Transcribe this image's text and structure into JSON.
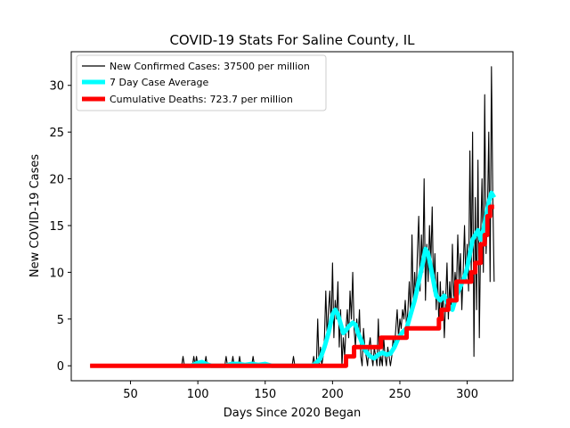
{
  "chart_data": {
    "type": "line",
    "title": "COVID-19 Stats For Saline County, IL",
    "xlabel": "Days Since 2020 Began",
    "ylabel": "New COVID-19 Cases",
    "xlim": [
      6,
      334
    ],
    "ylim": [
      -1.6,
      33.6
    ],
    "xticks": [
      50,
      100,
      150,
      200,
      250,
      300
    ],
    "yticks": [
      0,
      5,
      10,
      15,
      20,
      25,
      30
    ],
    "grid": false,
    "legend_position": "top-left",
    "series": [
      {
        "name": "New Confirmed Cases: 37500 per million",
        "color": "#000000",
        "points": [
          [
            20,
            0
          ],
          [
            88,
            0
          ],
          [
            89,
            1
          ],
          [
            90,
            0
          ],
          [
            96,
            0
          ],
          [
            97,
            1
          ],
          [
            98,
            0
          ],
          [
            99,
            1
          ],
          [
            100,
            0
          ],
          [
            105,
            0
          ],
          [
            106,
            1
          ],
          [
            107,
            0
          ],
          [
            120,
            0
          ],
          [
            121,
            1
          ],
          [
            122,
            0
          ],
          [
            125,
            0
          ],
          [
            126,
            1
          ],
          [
            127,
            0
          ],
          [
            130,
            0
          ],
          [
            131,
            1
          ],
          [
            132,
            0
          ],
          [
            140,
            0
          ],
          [
            141,
            1
          ],
          [
            142,
            0
          ],
          [
            170,
            0
          ],
          [
            171,
            1
          ],
          [
            172,
            0
          ],
          [
            185,
            0
          ],
          [
            186,
            1
          ],
          [
            187,
            0
          ],
          [
            188,
            0
          ],
          [
            189,
            5
          ],
          [
            190,
            0
          ],
          [
            191,
            2
          ],
          [
            192,
            0
          ],
          [
            193,
            1
          ],
          [
            194,
            3
          ],
          [
            195,
            8
          ],
          [
            196,
            3
          ],
          [
            197,
            6
          ],
          [
            198,
            8
          ],
          [
            199,
            4
          ],
          [
            200,
            11
          ],
          [
            201,
            3
          ],
          [
            202,
            7
          ],
          [
            203,
            5
          ],
          [
            204,
            9
          ],
          [
            205,
            2
          ],
          [
            206,
            6
          ],
          [
            207,
            0
          ],
          [
            208,
            3
          ],
          [
            209,
            1
          ],
          [
            210,
            4
          ],
          [
            211,
            6
          ],
          [
            212,
            3
          ],
          [
            213,
            8
          ],
          [
            214,
            5
          ],
          [
            215,
            10
          ],
          [
            216,
            4
          ],
          [
            217,
            2
          ],
          [
            218,
            5
          ],
          [
            219,
            3
          ],
          [
            220,
            6
          ],
          [
            221,
            1
          ],
          [
            222,
            0
          ],
          [
            223,
            4
          ],
          [
            224,
            2
          ],
          [
            225,
            1
          ],
          [
            226,
            0
          ],
          [
            227,
            2
          ],
          [
            228,
            3
          ],
          [
            229,
            1
          ],
          [
            230,
            0
          ],
          [
            231,
            2
          ],
          [
            232,
            1
          ],
          [
            233,
            0
          ],
          [
            234,
            5
          ],
          [
            235,
            0
          ],
          [
            236,
            1
          ],
          [
            237,
            0
          ],
          [
            238,
            3
          ],
          [
            239,
            1
          ],
          [
            240,
            0
          ],
          [
            241,
            2
          ],
          [
            242,
            1
          ],
          [
            243,
            0
          ],
          [
            244,
            1
          ],
          [
            245,
            3
          ],
          [
            246,
            2
          ],
          [
            247,
            4
          ],
          [
            248,
            6
          ],
          [
            249,
            3
          ],
          [
            250,
            5
          ],
          [
            251,
            4
          ],
          [
            252,
            6
          ],
          [
            253,
            5
          ],
          [
            254,
            7
          ],
          [
            255,
            4
          ],
          [
            256,
            6
          ],
          [
            257,
            9
          ],
          [
            258,
            5
          ],
          [
            259,
            14
          ],
          [
            260,
            6
          ],
          [
            261,
            10
          ],
          [
            262,
            7
          ],
          [
            263,
            12
          ],
          [
            264,
            16
          ],
          [
            265,
            8
          ],
          [
            266,
            14
          ],
          [
            267,
            10
          ],
          [
            268,
            20
          ],
          [
            269,
            7
          ],
          [
            270,
            13
          ],
          [
            271,
            9
          ],
          [
            272,
            15
          ],
          [
            273,
            11
          ],
          [
            274,
            17
          ],
          [
            275,
            8
          ],
          [
            276,
            12
          ],
          [
            277,
            6
          ],
          [
            278,
            10
          ],
          [
            279,
            4
          ],
          [
            280,
            9
          ],
          [
            281,
            5
          ],
          [
            282,
            8
          ],
          [
            283,
            3
          ],
          [
            284,
            7
          ],
          [
            285,
            11
          ],
          [
            286,
            5
          ],
          [
            287,
            9
          ],
          [
            288,
            6
          ],
          [
            289,
            13
          ],
          [
            290,
            7
          ],
          [
            291,
            10
          ],
          [
            292,
            8
          ],
          [
            293,
            14
          ],
          [
            294,
            9
          ],
          [
            295,
            12
          ],
          [
            296,
            6
          ],
          [
            297,
            10
          ],
          [
            298,
            15
          ],
          [
            299,
            9
          ],
          [
            300,
            13
          ],
          [
            301,
            8
          ],
          [
            302,
            23
          ],
          [
            303,
            10
          ],
          [
            304,
            25
          ],
          [
            305,
            1
          ],
          [
            306,
            18
          ],
          [
            307,
            6
          ],
          [
            308,
            22
          ],
          [
            309,
            3
          ],
          [
            310,
            14
          ],
          [
            311,
            20
          ],
          [
            312,
            10
          ],
          [
            313,
            29
          ],
          [
            314,
            12
          ],
          [
            315,
            16
          ],
          [
            316,
            25
          ],
          [
            317,
            9
          ],
          [
            318,
            32
          ],
          [
            319,
            18
          ],
          [
            320,
            9
          ]
        ]
      },
      {
        "name": "7 Day Case Average",
        "color": "#00ffff",
        "points": [
          [
            90,
            0
          ],
          [
            95,
            0
          ],
          [
            98,
            0.2
          ],
          [
            100,
            0.3
          ],
          [
            103,
            0.4
          ],
          [
            106,
            0.2
          ],
          [
            110,
            0
          ],
          [
            120,
            0
          ],
          [
            125,
            0.2
          ],
          [
            130,
            0.2
          ],
          [
            135,
            0.1
          ],
          [
            140,
            0.2
          ],
          [
            145,
            0.1
          ],
          [
            150,
            0.2
          ],
          [
            155,
            0
          ],
          [
            185,
            0
          ],
          [
            188,
            0.3
          ],
          [
            191,
            0.8
          ],
          [
            194,
            2.0
          ],
          [
            197,
            3.5
          ],
          [
            200,
            5.5
          ],
          [
            202,
            6.0
          ],
          [
            204,
            5.5
          ],
          [
            206,
            4.5
          ],
          [
            208,
            3.5
          ],
          [
            210,
            3.8
          ],
          [
            212,
            4.2
          ],
          [
            215,
            4.6
          ],
          [
            217,
            4.4
          ],
          [
            219,
            3.5
          ],
          [
            221,
            2.8
          ],
          [
            223,
            2.0
          ],
          [
            225,
            1.5
          ],
          [
            228,
            1.0
          ],
          [
            231,
            0.8
          ],
          [
            234,
            1.2
          ],
          [
            237,
            1.4
          ],
          [
            240,
            1.2
          ],
          [
            243,
            1.3
          ],
          [
            246,
            2.0
          ],
          [
            249,
            3.0
          ],
          [
            252,
            3.6
          ],
          [
            255,
            4.0
          ],
          [
            258,
            5.5
          ],
          [
            261,
            7.0
          ],
          [
            264,
            9.0
          ],
          [
            267,
            11.0
          ],
          [
            269,
            12.5
          ],
          [
            271,
            12.0
          ],
          [
            273,
            10.5
          ],
          [
            275,
            9.0
          ],
          [
            277,
            7.5
          ],
          [
            280,
            7.0
          ],
          [
            283,
            7.5
          ],
          [
            286,
            6.5
          ],
          [
            289,
            6.0
          ],
          [
            292,
            7.5
          ],
          [
            295,
            8.5
          ],
          [
            298,
            9.5
          ],
          [
            300,
            10.5
          ],
          [
            302,
            12.0
          ],
          [
            304,
            13.5
          ],
          [
            306,
            14.0
          ],
          [
            308,
            14.5
          ],
          [
            310,
            13.5
          ],
          [
            312,
            14.5
          ],
          [
            314,
            16.0
          ],
          [
            316,
            17.5
          ],
          [
            318,
            18.5
          ],
          [
            320,
            18.0
          ]
        ]
      },
      {
        "name": "Cumulative Deaths: 723.7 per million",
        "color": "#ff0000",
        "points": [
          [
            20,
            0
          ],
          [
            210,
            0
          ],
          [
            210,
            1
          ],
          [
            216,
            1
          ],
          [
            216,
            2
          ],
          [
            236,
            2
          ],
          [
            236,
            3
          ],
          [
            255,
            3
          ],
          [
            255,
            4
          ],
          [
            268,
            4
          ],
          [
            268,
            4
          ],
          [
            279,
            4
          ],
          [
            279,
            5
          ],
          [
            281,
            5
          ],
          [
            281,
            6
          ],
          [
            286,
            6
          ],
          [
            286,
            7
          ],
          [
            292,
            7
          ],
          [
            292,
            9
          ],
          [
            303,
            9
          ],
          [
            303,
            10
          ],
          [
            306,
            10
          ],
          [
            306,
            11
          ],
          [
            310,
            11
          ],
          [
            310,
            13
          ],
          [
            313,
            13
          ],
          [
            313,
            14
          ],
          [
            315,
            14
          ],
          [
            315,
            16
          ],
          [
            317,
            16
          ],
          [
            317,
            17
          ],
          [
            320,
            17
          ]
        ]
      }
    ]
  }
}
